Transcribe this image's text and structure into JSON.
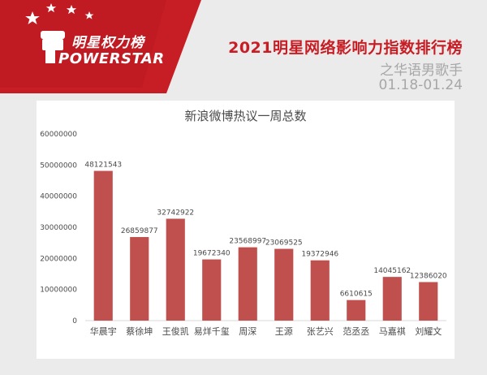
{
  "brand": {
    "name_cn": "明星权力榜",
    "name_en": "POWERSTAR",
    "accent": "#c71e25"
  },
  "header": {
    "title": "2021明星网络影响力指数排行榜",
    "subtitle": "之华语男歌手",
    "date_range": "01.18-01.24"
  },
  "chart_data": {
    "type": "bar",
    "title": "新浪微博热议一周总数",
    "categories": [
      "华晨宇",
      "蔡徐坤",
      "王俊凯",
      "易烊千玺",
      "周深",
      "王源",
      "张艺兴",
      "范丞丞",
      "马嘉祺",
      "刘耀文"
    ],
    "values": [
      48121543,
      26859877,
      32742922,
      19672340,
      23568997,
      23069525,
      19372946,
      6610615,
      14045162,
      12386020
    ],
    "value_labels": [
      "48121543",
      "26859877",
      "32742922",
      "19672340",
      "23568997",
      "23069525",
      "19372946",
      "6610615",
      "14045162",
      "12386020"
    ],
    "y_ticks": [
      0,
      10000000,
      20000000,
      30000000,
      40000000,
      50000000,
      60000000
    ],
    "y_tick_labels": [
      "0",
      "10000000",
      "20000000",
      "30000000",
      "40000000",
      "50000000",
      "60000000"
    ],
    "ylim": [
      0,
      60000000
    ],
    "xlabel": "",
    "ylabel": "",
    "grid": false,
    "bar_color": "#c0504d"
  }
}
